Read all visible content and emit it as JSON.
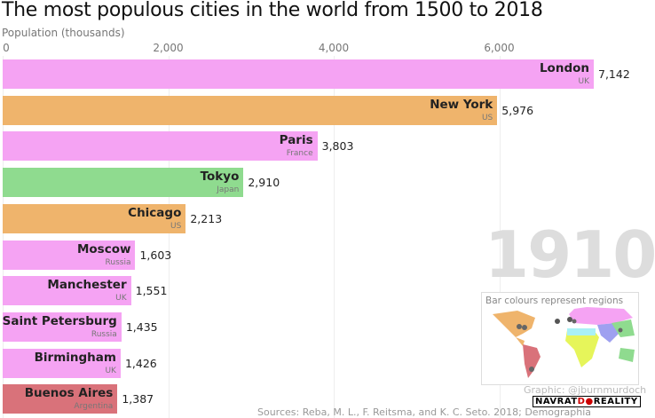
{
  "chart_data": {
    "type": "bar",
    "title": "The most populous cities in the world from 1500 to 2018",
    "xlabel": "Population (thousands)",
    "xlim": [
      0,
      7142
    ],
    "ticks": [
      "0",
      "2,000",
      "4,000",
      "6,000"
    ],
    "tick_values": [
      0,
      2000,
      4000,
      6000
    ],
    "year": "1910",
    "bars": [
      {
        "name": "London",
        "region": "UK",
        "value": 7142,
        "value_label": "7,142",
        "color": "#f5a3f3"
      },
      {
        "name": "New York",
        "region": "US",
        "value": 5976,
        "value_label": "5,976",
        "color": "#efb46c"
      },
      {
        "name": "Paris",
        "region": "France",
        "value": 3803,
        "value_label": "3,803",
        "color": "#f5a3f3"
      },
      {
        "name": "Tokyo",
        "region": "Japan",
        "value": 2910,
        "value_label": "2,910",
        "color": "#8fdb8f"
      },
      {
        "name": "Chicago",
        "region": "US",
        "value": 2213,
        "value_label": "2,213",
        "color": "#efb46c"
      },
      {
        "name": "Moscow",
        "region": "Russia",
        "value": 1603,
        "value_label": "1,603",
        "color": "#f5a3f3"
      },
      {
        "name": "Manchester",
        "region": "UK",
        "value": 1551,
        "value_label": "1,551",
        "color": "#f5a3f3"
      },
      {
        "name": "Saint Petersburg",
        "region": "Russia",
        "value": 1435,
        "value_label": "1,435",
        "color": "#f5a3f3"
      },
      {
        "name": "Birmingham",
        "region": "UK",
        "value": 1426,
        "value_label": "1,426",
        "color": "#f5a3f3"
      },
      {
        "name": "Buenos Aires",
        "region": "Argentina",
        "value": 1387,
        "value_label": "1,387",
        "color": "#d9727a"
      }
    ]
  },
  "legend": {
    "title": "Bar colours represent regions"
  },
  "credit": "Graphic: @jburnmurdoch",
  "source": "Sources: Reba, M. L., F. Reitsma, and K. C. Seto. 2018; Demographia",
  "watermark": "NAVRATDOREALITY"
}
